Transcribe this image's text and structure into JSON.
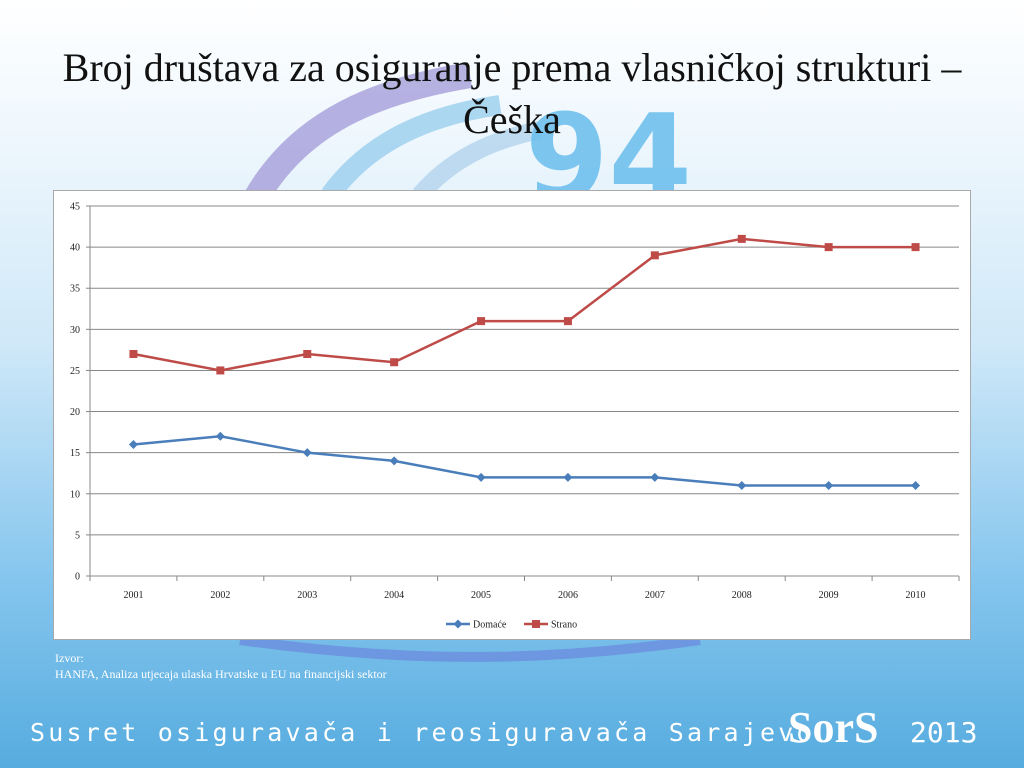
{
  "slide": {
    "title": "Broj društava za osiguranje prema vlasničkoj strukturi – Češka",
    "source_label": "Izvor:",
    "source_text": "HANFA, Analiza utjecaja ulaska Hrvatske u EU na financijski sektor",
    "footer_text": "Susret osiguravača i reosiguravača Sarajevo",
    "logo_text": "SorS",
    "logo_year": "2013",
    "background_watermark": "94"
  },
  "colors": {
    "domace": "#4a7ebb",
    "strano": "#be4b48",
    "grid": "#888888"
  },
  "chart_data": {
    "type": "line",
    "categories": [
      "2001",
      "2002",
      "2003",
      "2004",
      "2005",
      "2006",
      "2007",
      "2008",
      "2009",
      "2010"
    ],
    "series": [
      {
        "name": "Domaće",
        "values": [
          16,
          17,
          15,
          14,
          12,
          12,
          12,
          11,
          11,
          11
        ],
        "marker": "diamond"
      },
      {
        "name": "Strano",
        "values": [
          27,
          25,
          27,
          26,
          31,
          31,
          39,
          41,
          40,
          40
        ],
        "marker": "square"
      }
    ],
    "ylim": [
      0,
      45
    ],
    "yticks": [
      0,
      5,
      10,
      15,
      20,
      25,
      30,
      35,
      40,
      45
    ],
    "grid": true,
    "legend_position": "bottom"
  }
}
